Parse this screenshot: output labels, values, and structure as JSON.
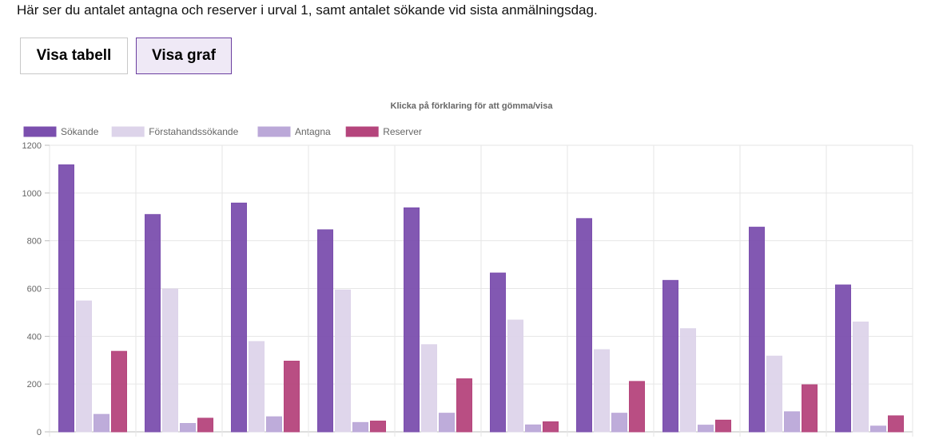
{
  "intro_text": "Här ser du antalet antagna och reserver i urval 1, samt antalet sökande vid sista anmälningsdag.",
  "buttons": {
    "table_label": "Visa tabell",
    "graph_label": "Visa graf"
  },
  "chart_data": {
    "type": "bar",
    "title": "Klicka på förklaring för att gömma/visa",
    "legend_position": "top-left",
    "grid": true,
    "ylim": [
      0,
      1200
    ],
    "yticks": [
      0,
      200,
      400,
      600,
      800,
      1000,
      1200
    ],
    "categories": [
      "",
      "",
      "",
      "",
      "",
      "",
      "",
      "",
      "",
      ""
    ],
    "series": [
      {
        "name": "Sökande",
        "color": "#7b4fae",
        "values": [
          1118,
          910,
          958,
          846,
          938,
          665,
          893,
          634,
          857,
          615
        ]
      },
      {
        "name": "Förstahandssökande",
        "color": "#ddd4ea",
        "values": [
          548,
          598,
          378,
          594,
          365,
          468,
          344,
          432,
          317,
          460
        ]
      },
      {
        "name": "Antagna",
        "color": "#bba8d8",
        "values": [
          73,
          35,
          63,
          39,
          78,
          29,
          78,
          28,
          84,
          24
        ]
      },
      {
        "name": "Reserver",
        "color": "#b5457c",
        "values": [
          337,
          57,
          296,
          45,
          222,
          42,
          211,
          49,
          197,
          67
        ]
      }
    ]
  }
}
